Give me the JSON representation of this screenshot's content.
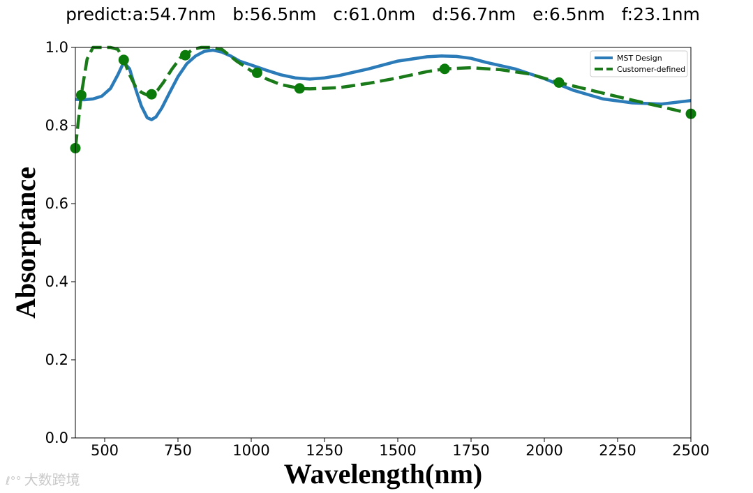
{
  "title": "predict:a:54.7nm   b:56.5nm   c:61.0nm   d:56.7nm   e:6.5nm   f:23.1nm",
  "watermark": {
    "text": "大数跨境",
    "logo": "ℓ°°"
  },
  "colors": {
    "mst": "#2b7bb9",
    "customer": "#1a7a1a",
    "marker": "#0a7a0a"
  },
  "chart_data": {
    "type": "line",
    "xlabel": "Wavelength(nm)",
    "ylabel": "Absorptance",
    "xlim": [
      400,
      2500
    ],
    "ylim": [
      0.0,
      1.0
    ],
    "xticks": [
      500,
      750,
      1000,
      1250,
      1500,
      1750,
      2000,
      2250,
      2500
    ],
    "xtick_labels": [
      "500",
      "750",
      "1000",
      "1250",
      "1500",
      "1750",
      "2000",
      "2250",
      "2500"
    ],
    "yticks": [
      0.0,
      0.2,
      0.4,
      0.6,
      0.8,
      1.0
    ],
    "ytick_labels": [
      "0.0",
      "0.2",
      "0.4",
      "0.6",
      "0.8",
      "1.0"
    ],
    "legend_position": "top-right",
    "series": [
      {
        "name": "MST Design",
        "style": "solid",
        "x": [
          400,
          430,
          460,
          490,
          520,
          545,
          565,
          585,
          605,
          625,
          645,
          660,
          675,
          695,
          720,
          750,
          780,
          810,
          840,
          870,
          900,
          930,
          960,
          1000,
          1050,
          1100,
          1150,
          1200,
          1250,
          1300,
          1400,
          1500,
          1600,
          1650,
          1700,
          1750,
          1800,
          1900,
          2000,
          2100,
          2200,
          2300,
          2400,
          2500
        ],
        "y": [
          0.867,
          0.866,
          0.868,
          0.875,
          0.895,
          0.93,
          0.962,
          0.945,
          0.895,
          0.85,
          0.82,
          0.815,
          0.822,
          0.845,
          0.882,
          0.925,
          0.958,
          0.978,
          0.99,
          0.993,
          0.988,
          0.978,
          0.965,
          0.955,
          0.942,
          0.93,
          0.922,
          0.919,
          0.922,
          0.928,
          0.945,
          0.965,
          0.976,
          0.978,
          0.977,
          0.972,
          0.962,
          0.945,
          0.92,
          0.89,
          0.868,
          0.858,
          0.855,
          0.864
        ]
      },
      {
        "name": "Customer-defined",
        "style": "dashed",
        "x": [
          400,
          420,
          440,
          460,
          480,
          500,
          520,
          545,
          565,
          585,
          605,
          625,
          645,
          660,
          680,
          700,
          730,
          760,
          775,
          800,
          830,
          860,
          900,
          950,
          1000,
          1020,
          1050,
          1100,
          1165,
          1200,
          1300,
          1400,
          1500,
          1600,
          1660,
          1750,
          1850,
          1950,
          2050,
          2150,
          2300,
          2400,
          2500
        ],
        "y": [
          0.742,
          0.878,
          0.97,
          1.0,
          1.0,
          1.0,
          1.0,
          0.995,
          0.968,
          0.93,
          0.9,
          0.885,
          0.878,
          0.88,
          0.89,
          0.91,
          0.945,
          0.975,
          0.98,
          0.995,
          1.0,
          1.0,
          0.995,
          0.965,
          0.94,
          0.935,
          0.92,
          0.905,
          0.895,
          0.894,
          0.897,
          0.908,
          0.922,
          0.938,
          0.945,
          0.948,
          0.943,
          0.932,
          0.91,
          0.892,
          0.865,
          0.848,
          0.83
        ]
      }
    ],
    "markers": {
      "series": "Customer-defined",
      "x": [
        400,
        420,
        565,
        660,
        775,
        1020,
        1165,
        1660,
        2050,
        2500
      ],
      "y": [
        0.742,
        0.878,
        0.968,
        0.88,
        0.98,
        0.935,
        0.895,
        0.945,
        0.91,
        0.83
      ]
    }
  }
}
